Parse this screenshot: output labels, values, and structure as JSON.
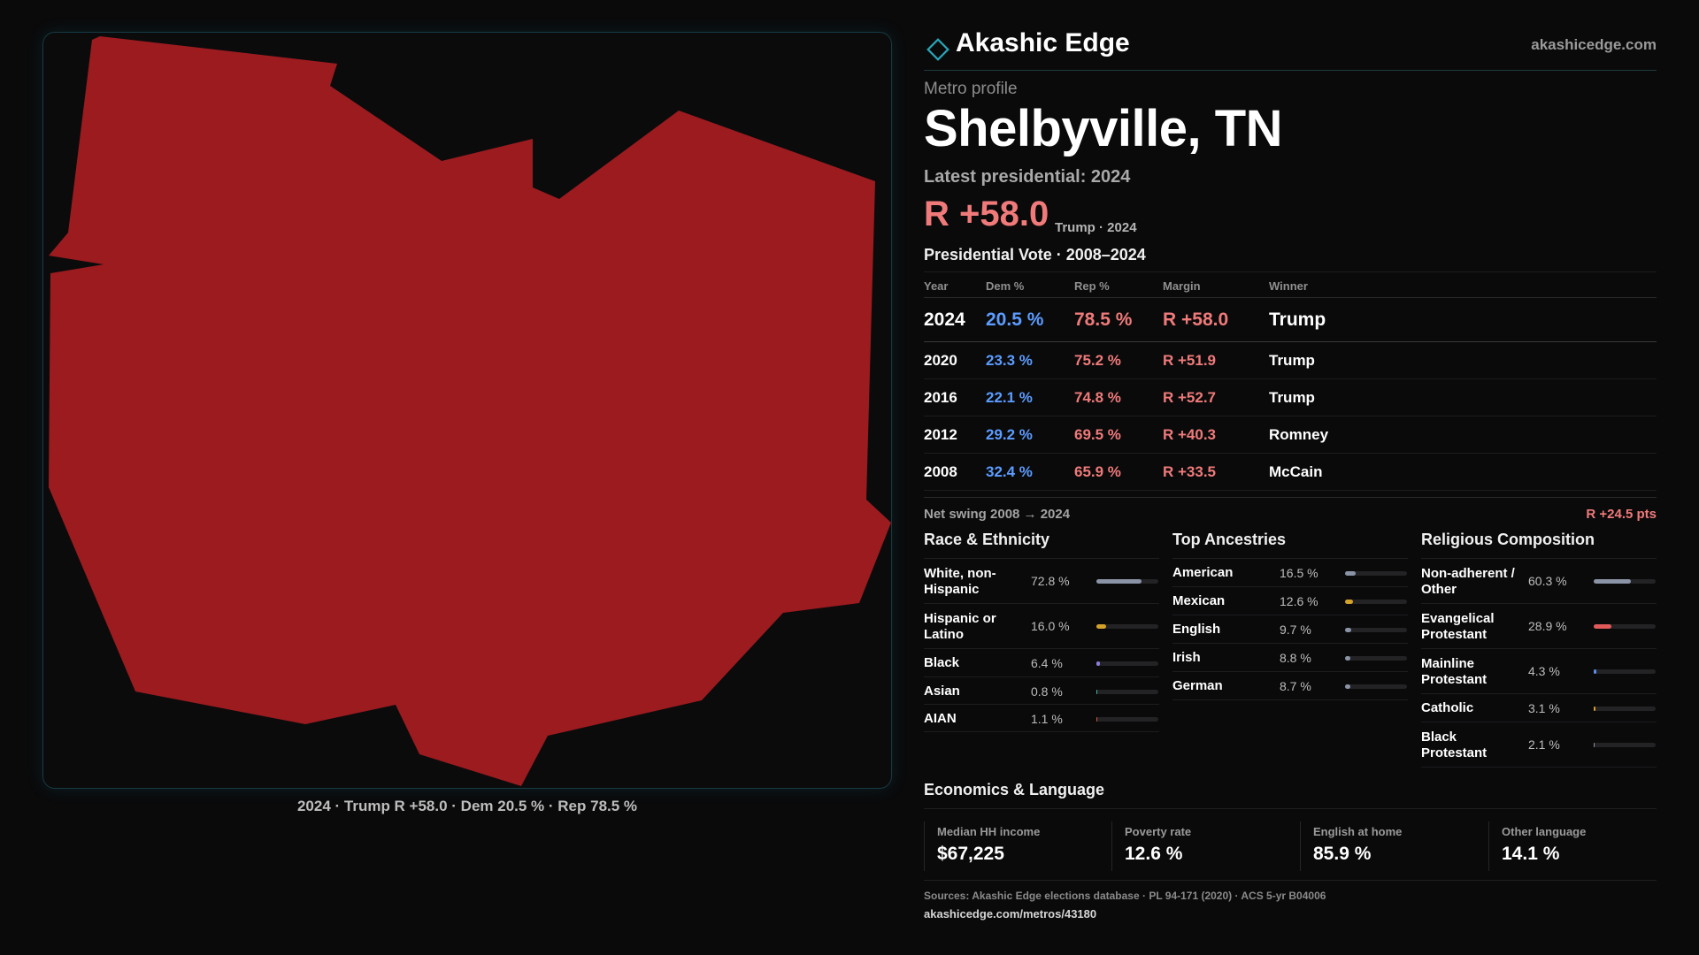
{
  "brand": {
    "name": "Akashic Edge",
    "url": "akashicedge.com"
  },
  "profile": {
    "eyebrow": "Metro profile",
    "title": "Shelbyville, TN",
    "latest_label": "Latest presidential: 2024",
    "headline_margin": "R +58.0",
    "headline_sub": "Trump · 2024"
  },
  "map": {
    "caption": "2024 · Trump R +58.0 · Dem 20.5 % · Rep 78.5 %",
    "fill_color": "#9b1b1f"
  },
  "presidential": {
    "title": "Presidential Vote · 2008–2024",
    "headers": {
      "year": "Year",
      "dem": "Dem %",
      "rep": "Rep %",
      "margin": "Margin",
      "winner": "Winner"
    },
    "rows": [
      {
        "year": "2024",
        "dem": "20.5 %",
        "rep": "78.5 %",
        "margin": "R +58.0",
        "winner": "Trump"
      },
      {
        "year": "2020",
        "dem": "23.3 %",
        "rep": "75.2 %",
        "margin": "R +51.9",
        "winner": "Trump"
      },
      {
        "year": "2016",
        "dem": "22.1 %",
        "rep": "74.8 %",
        "margin": "R +52.7",
        "winner": "Trump"
      },
      {
        "year": "2012",
        "dem": "29.2 %",
        "rep": "69.5 %",
        "margin": "R +40.3",
        "winner": "Romney"
      },
      {
        "year": "2008",
        "dem": "32.4 %",
        "rep": "65.9 %",
        "margin": "R +33.5",
        "winner": "McCain"
      }
    ],
    "swing_label": "Net swing 2008 → 2024",
    "swing_value": "R +24.5 pts"
  },
  "race": {
    "title": "Race & Ethnicity",
    "rows": [
      {
        "label": "White, non-Hispanic",
        "pct": "72.8 %",
        "value": 72.8,
        "color": "#8a94a6"
      },
      {
        "label": "Hispanic or Latino",
        "pct": "16.0 %",
        "value": 16.0,
        "color": "#d4a12a"
      },
      {
        "label": "Black",
        "pct": "6.4 %",
        "value": 6.4,
        "color": "#8e7ad8"
      },
      {
        "label": "Asian",
        "pct": "0.8 %",
        "value": 0.8,
        "color": "#3fb4a0"
      },
      {
        "label": "AIAN",
        "pct": "1.1 %",
        "value": 1.1,
        "color": "#d05a3a"
      }
    ]
  },
  "ancestry": {
    "title": "Top Ancestries",
    "rows": [
      {
        "label": "American",
        "pct": "16.5 %",
        "value": 16.5,
        "color": "#8a94a6"
      },
      {
        "label": "Mexican",
        "pct": "12.6 %",
        "value": 12.6,
        "color": "#d4a12a"
      },
      {
        "label": "English",
        "pct": "9.7 %",
        "value": 9.7,
        "color": "#8a94a6"
      },
      {
        "label": "Irish",
        "pct": "8.8 %",
        "value": 8.8,
        "color": "#8a94a6"
      },
      {
        "label": "German",
        "pct": "8.7 %",
        "value": 8.7,
        "color": "#8a94a6"
      }
    ]
  },
  "religion": {
    "title": "Religious Composition",
    "rows": [
      {
        "label": "Non-adherent / Other",
        "pct": "60.3 %",
        "value": 60.3,
        "color": "#8a94a6"
      },
      {
        "label": "Evangelical Protestant",
        "pct": "28.9 %",
        "value": 28.9,
        "color": "#e05a5a"
      },
      {
        "label": "Mainline Protestant",
        "pct": "4.3 %",
        "value": 4.3,
        "color": "#5c8ce8"
      },
      {
        "label": "Catholic",
        "pct": "3.1 %",
        "value": 3.1,
        "color": "#d4a12a"
      },
      {
        "label": "Black Protestant",
        "pct": "2.1 %",
        "value": 2.1,
        "color": "#8a94a6"
      }
    ]
  },
  "economics": {
    "title": "Economics & Language",
    "cells": [
      {
        "label": "Median HH income",
        "value": "$67,225"
      },
      {
        "label": "Poverty rate",
        "value": "12.6 %"
      },
      {
        "label": "English at home",
        "value": "85.9 %"
      },
      {
        "label": "Other language",
        "value": "14.1 %"
      }
    ]
  },
  "footer": {
    "sources": "Sources: Akashic Edge elections database · PL 94-171 (2020) · ACS 5-yr B04006",
    "url": "akashicedge.com/metros/43180"
  }
}
